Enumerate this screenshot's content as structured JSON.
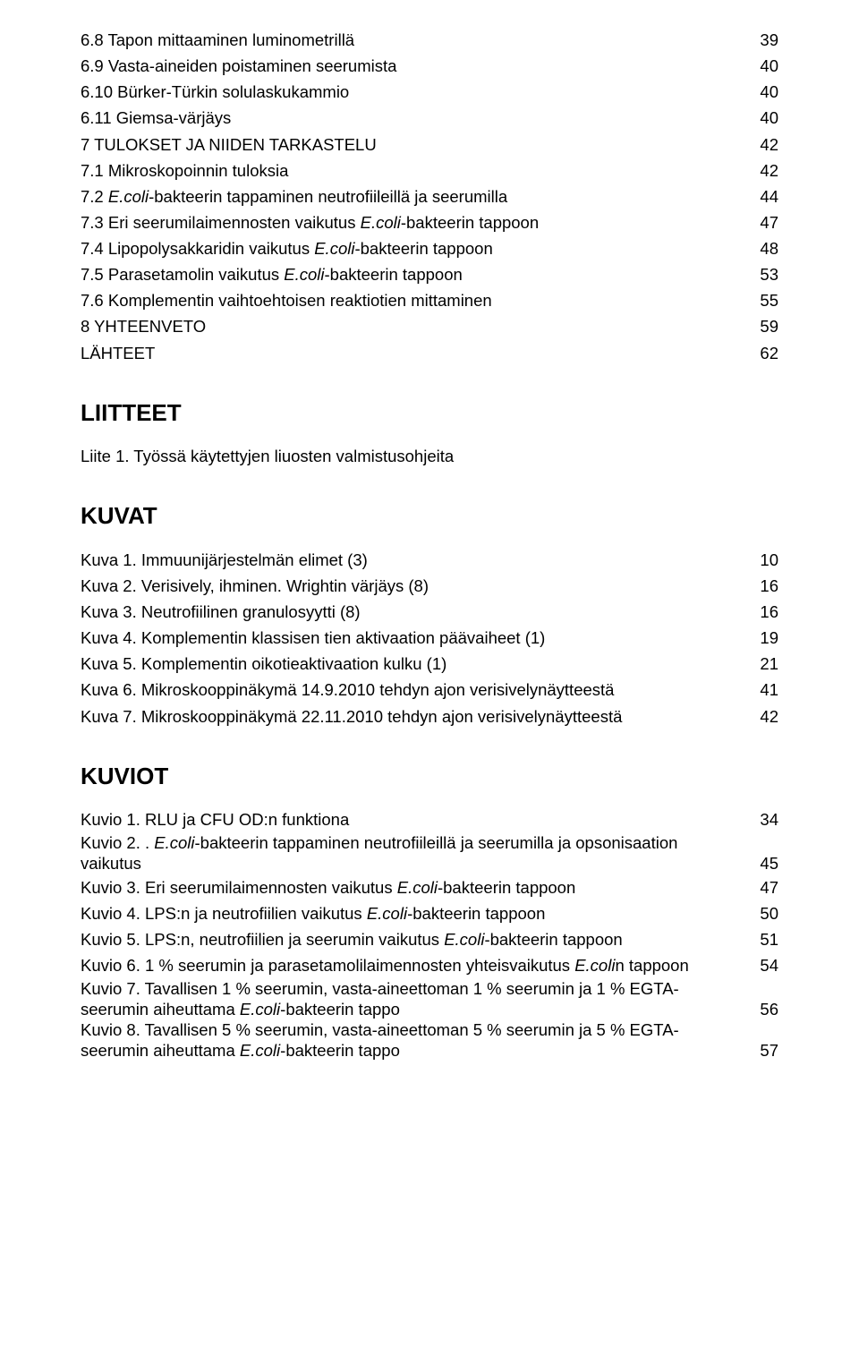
{
  "toc": [
    {
      "label": "6.8 Tapon mittaaminen luminometrillä",
      "page": "39"
    },
    {
      "label": "6.9 Vasta-aineiden poistaminen seerumista",
      "page": "40"
    },
    {
      "label": "6.10 Bürker-Türkin solulaskukammio",
      "page": "40"
    },
    {
      "label": "6.11 Giemsa-värjäys",
      "page": "40"
    },
    {
      "label": "7 TULOKSET JA NIIDEN TARKASTELU",
      "page": "42"
    },
    {
      "label": "7.1 Mikroskopoinnin tuloksia",
      "page": "42"
    },
    {
      "labelBefore": "7.2 ",
      "italic": "E.coli",
      "labelAfter": "-bakteerin tappaminen neutrofiileillä ja seerumilla",
      "page": "44"
    },
    {
      "labelBefore": "7.3 Eri seerumilaimennosten vaikutus ",
      "italic": "E.coli",
      "labelAfter": "-bakteerin tappoon",
      "page": "47"
    },
    {
      "labelBefore": "7.4 Lipopolysakkaridin vaikutus ",
      "italic": "E.coli",
      "labelAfter": "-bakteerin tappoon",
      "page": "48"
    },
    {
      "labelBefore": "7.5 Parasetamolin vaikutus ",
      "italic": "E.coli",
      "labelAfter": "-bakteerin tappoon",
      "page": "53"
    },
    {
      "label": "7.6 Komplementin vaihtoehtoisen reaktiotien mittaminen",
      "page": "55"
    },
    {
      "label": "8 YHTEENVETO",
      "page": "59"
    },
    {
      "label": "LÄHTEET",
      "page": "62"
    }
  ],
  "sections": {
    "liitteet": "LIITTEET",
    "kuvat": "KUVAT",
    "kuviot": "KUVIOT"
  },
  "liite": [
    {
      "label": "Liite 1. Työssä käytettyjen liuosten valmistusohjeita",
      "page": ""
    }
  ],
  "kuvat": [
    {
      "label": "Kuva 1. Immuunijärjestelmän elimet (3)",
      "page": "10"
    },
    {
      "label": "Kuva 2. Verisively, ihminen. Wrightin värjäys (8)",
      "page": "16"
    },
    {
      "label": "Kuva 3. Neutrofiilinen granulosyytti (8)",
      "page": "16"
    },
    {
      "label": "Kuva 4. Komplementin klassisen tien aktivaation päävaiheet (1)",
      "page": "19"
    },
    {
      "label": "Kuva 5. Komplementin oikotieaktivaation kulku (1)",
      "page": "21"
    },
    {
      "label": "Kuva 6. Mikroskooppinäkymä 14.9.2010 tehdyn ajon verisivelynäytteestä",
      "page": "41"
    },
    {
      "label": "Kuva 7. Mikroskooppinäkymä 22.11.2010 tehdyn ajon verisivelynäytteestä",
      "page": "42"
    }
  ],
  "kuviot": [
    {
      "label": "Kuvio 1. RLU ja CFU OD:n funktiona",
      "page": "34"
    },
    {
      "line1Before": "Kuvio 2. . ",
      "italic": "E.coli",
      "line1After": "-bakteerin tappaminen neutrofiileillä ja seerumilla ja opsonisaation",
      "line2": "vaikutus",
      "page": "45"
    },
    {
      "labelBefore": "Kuvio 3. Eri seerumilaimennosten vaikutus ",
      "italic": "E.coli",
      "labelAfter": "-bakteerin tappoon",
      "page": "47"
    },
    {
      "labelBefore": "Kuvio 4. LPS:n ja neutrofiilien vaikutus ",
      "italic": "E.coli",
      "labelAfter": "-bakteerin tappoon",
      "page": "50"
    },
    {
      "labelBefore": "Kuvio 5. LPS:n, neutrofiilien ja seerumin vaikutus ",
      "italic": "E.coli",
      "labelAfter": "-bakteerin tappoon",
      "page": "51"
    },
    {
      "labelBefore": "Kuvio 6. 1 % seerumin ja parasetamolilaimennosten yhteisvaikutus ",
      "italic": "E.coli",
      "italicAfter": "n",
      "labelAfter": " tappoon",
      "page": "54"
    },
    {
      "line1": "Kuvio 7. Tavallisen 1 % seerumin, vasta-aineettoman 1 % seerumin ja 1 % EGTA-",
      "line2Before": "seerumin aiheuttama ",
      "italic": "E.coli",
      "line2After": "-bakteerin tappo",
      "page": "56"
    },
    {
      "line1": "Kuvio 8. Tavallisen 5 % seerumin, vasta-aineettoman 5 % seerumin ja 5 % EGTA-",
      "line2Before": "seerumin aiheuttama ",
      "italic": "E.coli",
      "line2After": "-bakteerin tappo",
      "page": "57"
    }
  ]
}
